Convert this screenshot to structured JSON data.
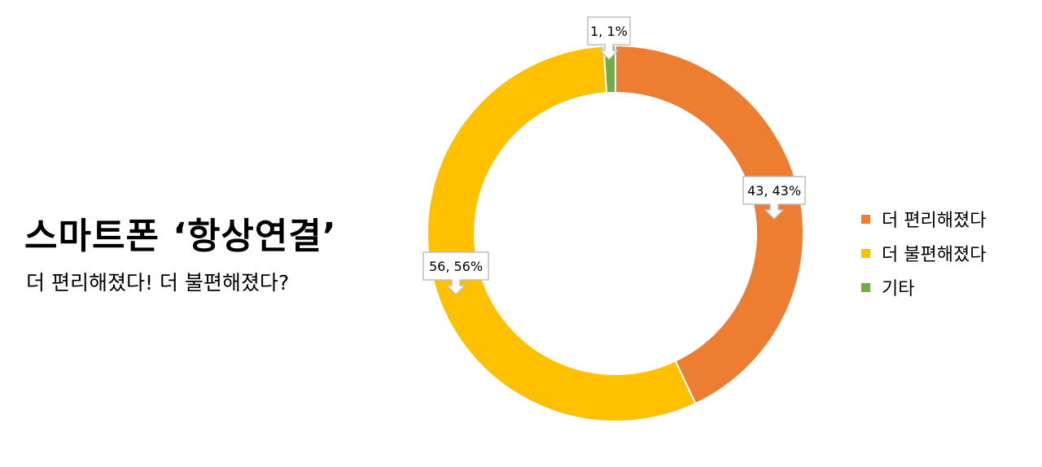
{
  "headline": "스마트폰 ‘항상연결’",
  "subheadline": "더 편리해졌다! 더 불편해졌다?",
  "chart_data": {
    "type": "pie",
    "donut": true,
    "categories": [
      "더 편리해졌다",
      "더 불편해졌다",
      "기타"
    ],
    "values": [
      43,
      56,
      1
    ],
    "percents": [
      43,
      56,
      1
    ],
    "data_labels": [
      "43, 43%",
      "56, 56%",
      "1, 1%"
    ],
    "colors": [
      "#ED7D31",
      "#FFC000",
      "#70AD47"
    ],
    "legend_position": "right",
    "start_angle_deg": 0,
    "direction": "clockwise"
  }
}
